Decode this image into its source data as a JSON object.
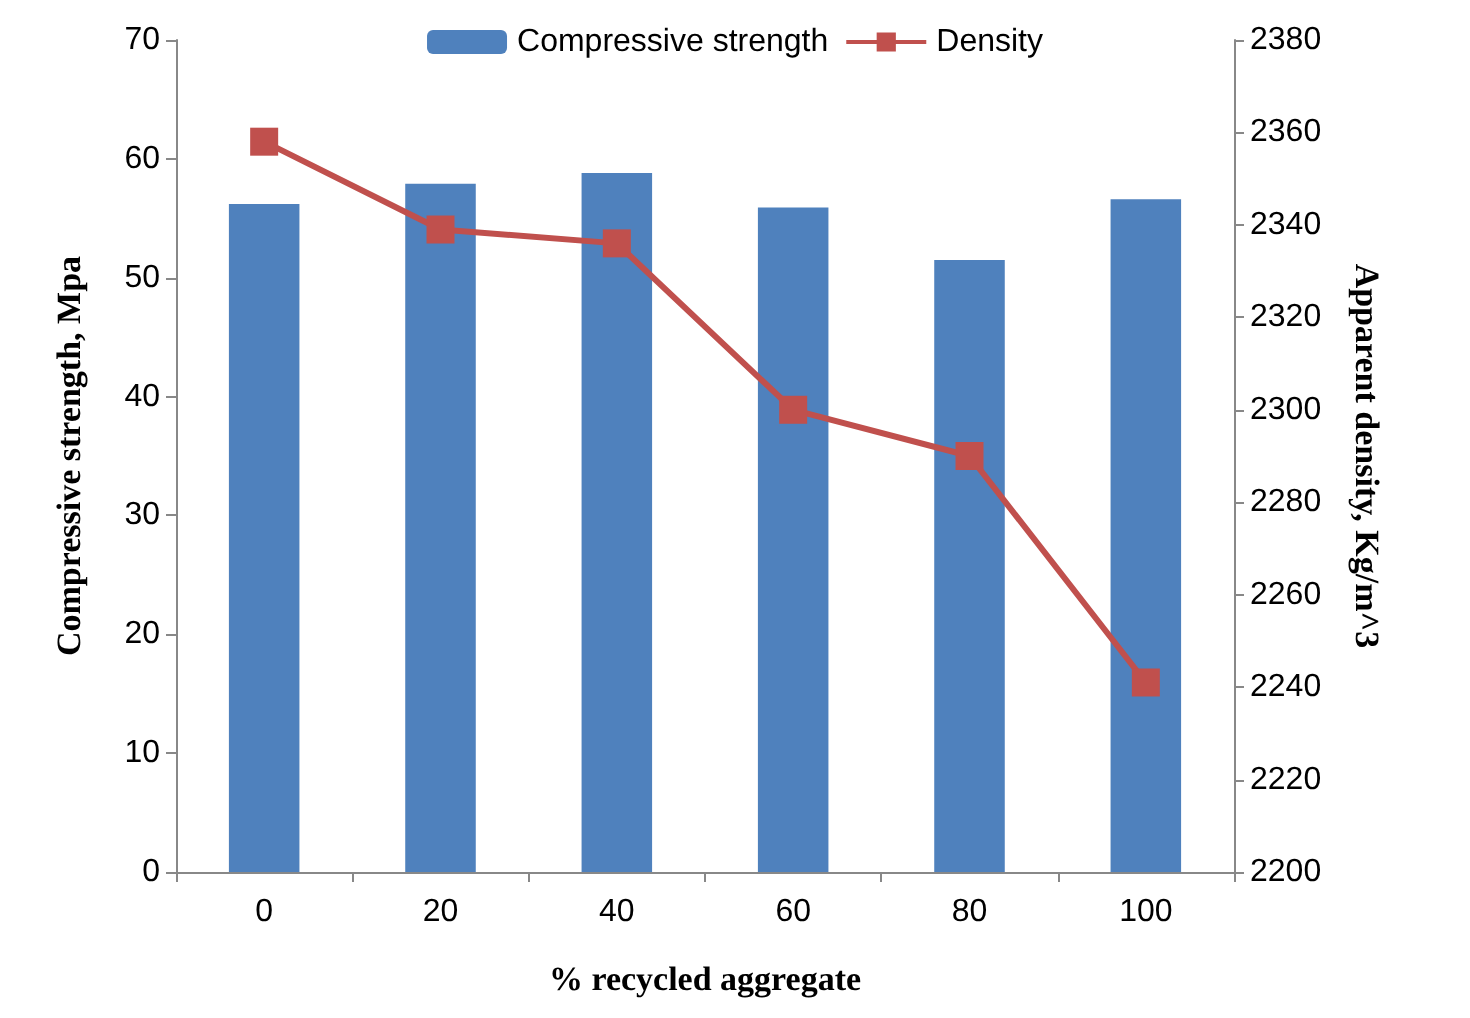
{
  "chart_data": {
    "type": "bar",
    "xlabel": "% recycled aggregate",
    "ylabel": "Compressive strength, Mpa",
    "y2label": "Apparent density, Kg/m^3",
    "categories": [
      "0",
      "20",
      "40",
      "60",
      "80",
      "100"
    ],
    "series": [
      {
        "name": "Compressive strength",
        "color": "#4f81bd",
        "values": [
          56.2,
          57.9,
          58.8,
          55.9,
          51.5,
          56.6
        ]
      },
      {
        "name": "Density",
        "type": "line",
        "axis": "y2",
        "color": "#c0504d",
        "marker": "square",
        "values": [
          2358,
          2339,
          2336,
          2300,
          2290,
          2241
        ]
      }
    ],
    "ylim": [
      0,
      70
    ],
    "yticks": [
      0,
      10,
      20,
      30,
      40,
      50,
      60,
      70
    ],
    "y2lim": [
      2200,
      2380
    ],
    "y2ticks": [
      2200,
      2220,
      2240,
      2260,
      2280,
      2300,
      2320,
      2340,
      2360,
      2380
    ],
    "legend": "top",
    "grid": false
  }
}
